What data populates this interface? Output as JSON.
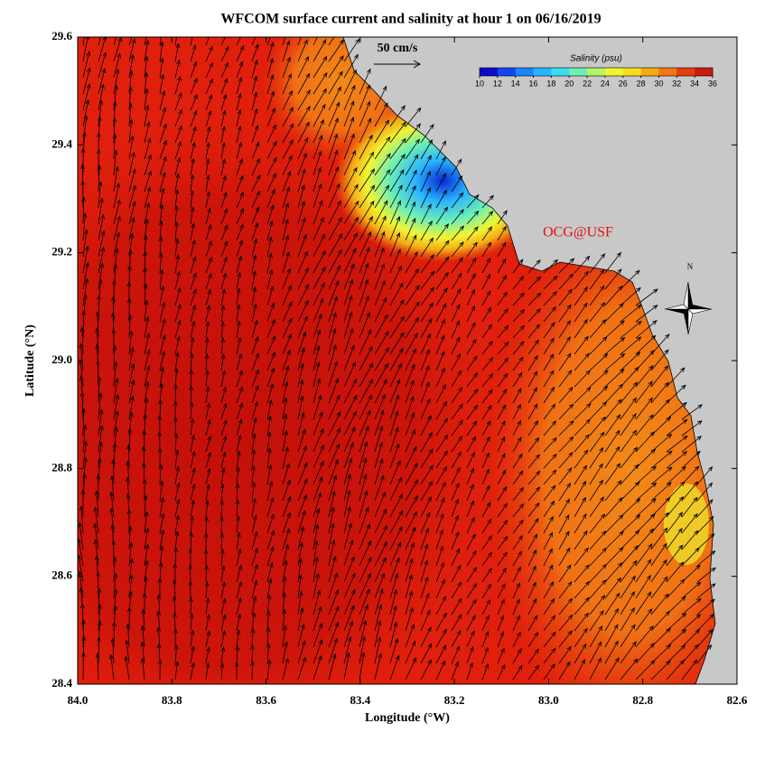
{
  "title": "WFCOM surface current and salinity at hour 1 on 06/16/2019",
  "x_label": "Longitude (°W)",
  "y_label": "Latitude (°N)",
  "xlim": [
    84,
    82.6
  ],
  "ylim": [
    28.4,
    29.6
  ],
  "xticks": [
    {
      "value": 84,
      "label": "84.0"
    },
    83.8,
    83.6,
    83.4,
    83.2,
    {
      "value": 83,
      "label": "83.0"
    },
    82.8,
    82.6
  ],
  "yticks": [
    28.4,
    28.6,
    28.8,
    {
      "value": 29,
      "label": "29.0"
    },
    29.2,
    29.4,
    29.6
  ],
  "scale_label": "50 cm/s",
  "credit": "OCG@USF",
  "compass": "N",
  "colorbar": {
    "label": "Salinity (psu)",
    "lim": [
      10,
      36
    ],
    "ticks": [
      10,
      12,
      14,
      16,
      18,
      20,
      22,
      24,
      26,
      28,
      30,
      32,
      34,
      36
    ],
    "colors": [
      "#0a0ac8",
      "#1446f0",
      "#1e82ff",
      "#28b4ff",
      "#3cdcf0",
      "#6ef0b4",
      "#b4f564",
      "#f0f532",
      "#fadc1e",
      "#f5aa14",
      "#f07814",
      "#e63c0f",
      "#c81e0a"
    ]
  }
}
